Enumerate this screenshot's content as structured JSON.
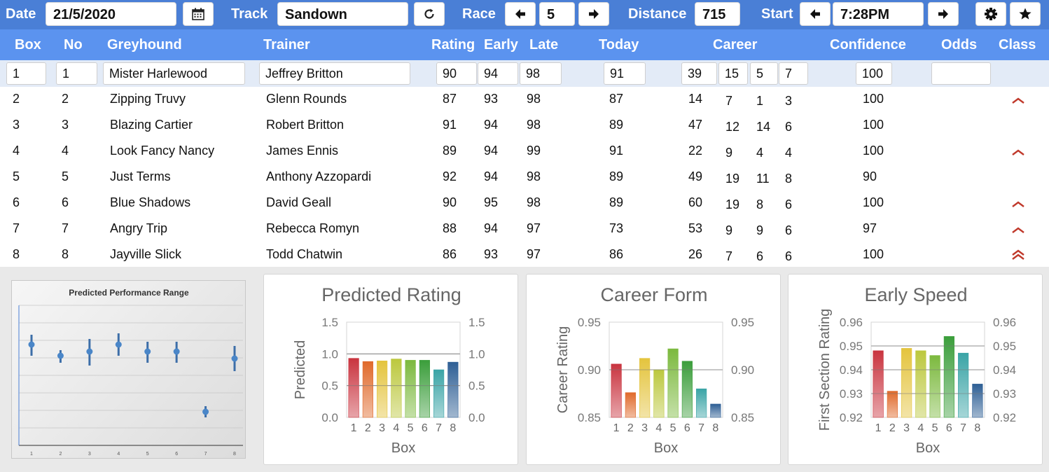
{
  "toolbar": {
    "date_label": "Date",
    "date_value": "21/5/2020",
    "track_label": "Track",
    "track_value": "Sandown",
    "race_label": "Race",
    "race_value": "5",
    "distance_label": "Distance",
    "distance_value": "715",
    "start_label": "Start",
    "start_value": "7:28PM",
    "icons": [
      "calendar-icon",
      "refresh-icon",
      "arrow-left-icon",
      "arrow-right-icon",
      "gear-icon",
      "star-icon"
    ]
  },
  "columns": {
    "box": "Box",
    "no": "No",
    "greyhound": "Greyhound",
    "trainer": "Trainer",
    "rating": "Rating",
    "early": "Early",
    "late": "Late",
    "today": "Today",
    "career": "Career",
    "confidence": "Confidence",
    "odds": "Odds",
    "class": "Class"
  },
  "selected_row": {
    "box": "1",
    "no": "1",
    "greyhound": "Mister Harlewood",
    "trainer": "Jeffrey Britton",
    "rating": "90",
    "early": "94",
    "late": "98",
    "today": "91",
    "career": [
      "39",
      "15",
      "5",
      "7"
    ],
    "confidence": "100",
    "odds": ""
  },
  "rows": [
    {
      "box": "2",
      "no": "2",
      "greyhound": "Zipping Truvy",
      "trainer": "Glenn Rounds",
      "rating": "87",
      "early": "93",
      "late": "98",
      "today": "87",
      "career": [
        "14",
        "7",
        "1",
        "3"
      ],
      "confidence": "100",
      "class": "up"
    },
    {
      "box": "3",
      "no": "3",
      "greyhound": "Blazing Cartier",
      "trainer": "Robert Britton",
      "rating": "91",
      "early": "94",
      "late": "98",
      "today": "89",
      "career": [
        "47",
        "12",
        "14",
        "6"
      ],
      "confidence": "100",
      "class": "none"
    },
    {
      "box": "4",
      "no": "4",
      "greyhound": "Look Fancy Nancy",
      "trainer": "James Ennis",
      "rating": "89",
      "early": "94",
      "late": "99",
      "today": "91",
      "career": [
        "22",
        "9",
        "4",
        "4"
      ],
      "confidence": "100",
      "class": "up"
    },
    {
      "box": "5",
      "no": "5",
      "greyhound": "Just Terms",
      "trainer": "Anthony Azzopardi",
      "rating": "92",
      "early": "94",
      "late": "98",
      "today": "89",
      "career": [
        "49",
        "19",
        "11",
        "8"
      ],
      "confidence": "90",
      "class": "none"
    },
    {
      "box": "6",
      "no": "6",
      "greyhound": "Blue Shadows",
      "trainer": "David Geall",
      "rating": "90",
      "early": "95",
      "late": "98",
      "today": "89",
      "career": [
        "60",
        "19",
        "8",
        "6"
      ],
      "confidence": "100",
      "class": "up"
    },
    {
      "box": "7",
      "no": "7",
      "greyhound": "Angry Trip",
      "trainer": "Rebecca Romyn",
      "rating": "88",
      "early": "94",
      "late": "97",
      "today": "73",
      "career": [
        "53",
        "9",
        "9",
        "6"
      ],
      "confidence": "97",
      "class": "up"
    },
    {
      "box": "8",
      "no": "8",
      "greyhound": "Jayville Slick",
      "trainer": "Todd Chatwin",
      "rating": "86",
      "early": "93",
      "late": "97",
      "today": "86",
      "career": [
        "26",
        "7",
        "6",
        "6"
      ],
      "confidence": "100",
      "class": "double-up"
    }
  ],
  "colors": {
    "toolbar_bg": "#4a7fd6",
    "header_bg": "#5b93ef",
    "selected_row_bg": "#e3ebf7",
    "class_arrow": "#c0392b",
    "bar_palette": [
      "#c9343f",
      "#e06a2b",
      "#e4c43d",
      "#bcc83e",
      "#7cb93e",
      "#3b9e3b",
      "#3aa4a6",
      "#2e5f95"
    ]
  },
  "chart_data": [
    {
      "type": "scatter",
      "title": "Predicted Performance Range",
      "x": [
        1,
        2,
        3,
        4,
        5,
        6,
        7,
        8
      ],
      "y": [
        0.72,
        0.64,
        0.67,
        0.72,
        0.67,
        0.67,
        0.24,
        0.62
      ],
      "y_low": [
        0.64,
        0.59,
        0.57,
        0.64,
        0.59,
        0.59,
        0.2,
        0.53
      ],
      "y_high": [
        0.79,
        0.68,
        0.76,
        0.8,
        0.74,
        0.74,
        0.28,
        0.71
      ],
      "ylim": [
        0,
        1
      ],
      "grid": true
    },
    {
      "type": "bar",
      "title": "Predicted Rating",
      "xlabel": "Box",
      "ylabel": "Predicted",
      "categories": [
        "1",
        "2",
        "3",
        "4",
        "5",
        "6",
        "7",
        "8"
      ],
      "values": [
        0.93,
        0.88,
        0.89,
        0.92,
        0.9,
        0.9,
        0.75,
        0.87
      ],
      "ylim": [
        0,
        1.5
      ],
      "yticks": [
        "0.0",
        "0.5",
        "1.0",
        "1.5"
      ],
      "grid": true
    },
    {
      "type": "bar",
      "title": "Career Form",
      "xlabel": "Box",
      "ylabel": "Career Rating",
      "categories": [
        "1",
        "2",
        "3",
        "4",
        "5",
        "6",
        "7",
        "8"
      ],
      "values": [
        0.906,
        0.876,
        0.912,
        0.9,
        0.922,
        0.909,
        0.88,
        0.864
      ],
      "ylim": [
        0.85,
        0.95
      ],
      "yticks": [
        "0.85",
        "0.90",
        "0.95"
      ],
      "grid": true
    },
    {
      "type": "bar",
      "title": "Early Speed",
      "xlabel": "Box",
      "ylabel": "First Section Rating",
      "categories": [
        "1",
        "2",
        "3",
        "4",
        "5",
        "6",
        "7",
        "8"
      ],
      "values": [
        0.948,
        0.931,
        0.949,
        0.948,
        0.946,
        0.954,
        0.947,
        0.934
      ],
      "ylim": [
        0.92,
        0.96
      ],
      "yticks": [
        "0.92",
        "0.93",
        "0.94",
        "0.95",
        "0.96"
      ],
      "grid": true
    }
  ]
}
